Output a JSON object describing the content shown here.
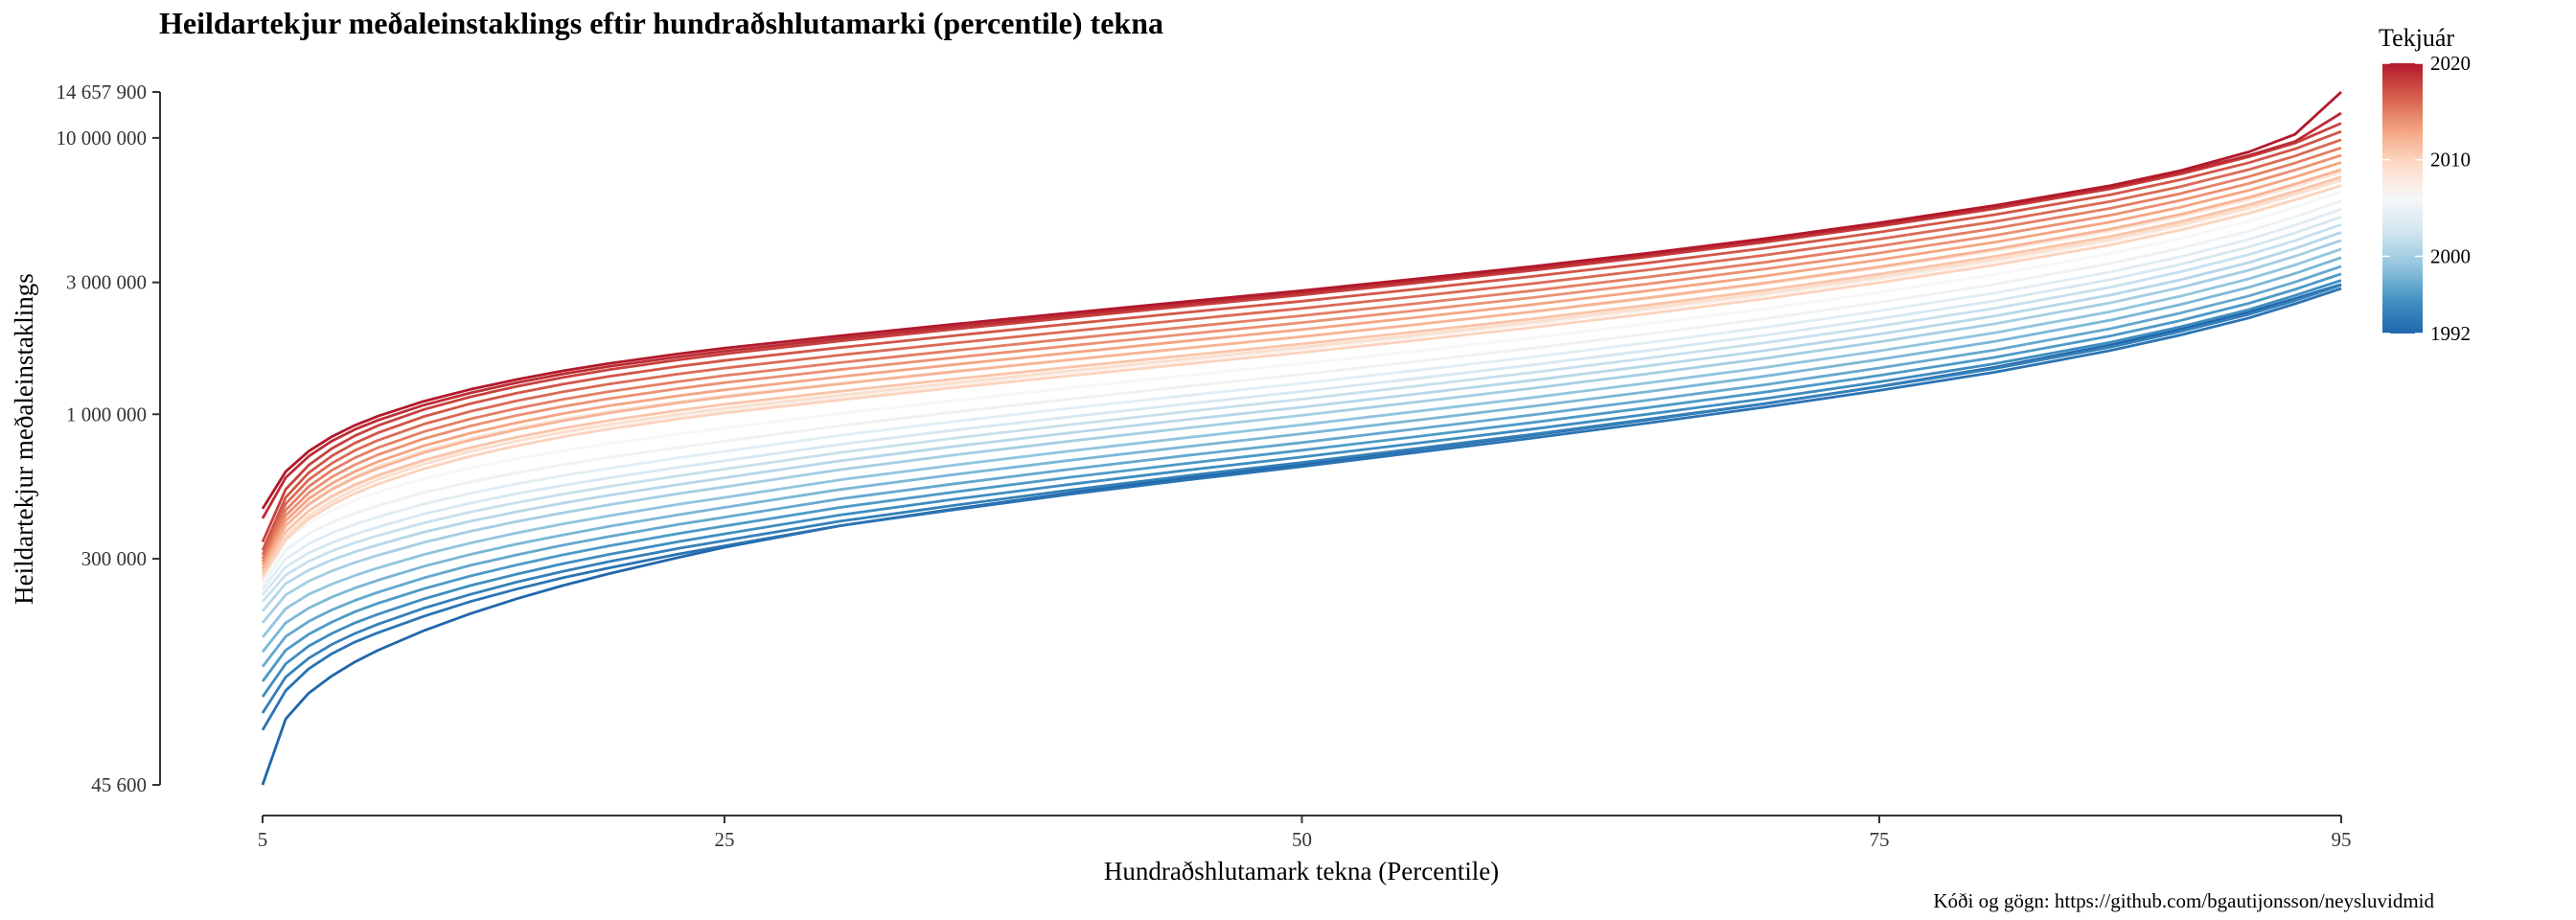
{
  "page": {
    "title": "Heildartekjur meðaleinstaklings eftir hundraðshlutamarki (percentile) tekna",
    "caption": "Kóði og gögn: https://github.com/bgautijonsson/neysluvidmid"
  },
  "chart_data": {
    "type": "line",
    "title": "Heildartekjur meðaleinstaklings eftir hundraðshlutamarki (percentile) tekna",
    "xlabel": "Hundraðshlutamark tekna (Percentile)",
    "ylabel": "Heildartekjur meðaleinstaklings",
    "xlim": [
      5,
      95
    ],
    "ylim": [
      45600,
      14657900
    ],
    "yscale": "log",
    "x_ticks": [
      5,
      25,
      50,
      75,
      95
    ],
    "y_ticks": [
      {
        "value": 45600,
        "label": "45 600"
      },
      {
        "value": 300000,
        "label": "300 000"
      },
      {
        "value": 1000000,
        "label": "1 000 000"
      },
      {
        "value": 3000000,
        "label": "3 000 000"
      },
      {
        "value": 10000000,
        "label": "10 000 000"
      },
      {
        "value": 14657900,
        "label": "14 657 900"
      }
    ],
    "grid": false,
    "color_scale": "RdBu diverging (blue = 1992, white ≈ 2006, red = 2020)",
    "legend": {
      "title": "Tekjuár",
      "position": "top-right",
      "min": 1992,
      "max": 2020,
      "breaks": [
        1992,
        2000,
        2010,
        2020
      ],
      "colors": [
        "#2166ac",
        "#4393c3",
        "#92c5de",
        "#d1e5f0",
        "#f7f7f7",
        "#fddbc7",
        "#f4a582",
        "#d6604d",
        "#b2182b"
      ]
    },
    "x": [
      5,
      6,
      7,
      8,
      9,
      10,
      12,
      14,
      16,
      18,
      20,
      23,
      25,
      30,
      35,
      40,
      45,
      50,
      55,
      60,
      65,
      70,
      75,
      80,
      85,
      88,
      91,
      93,
      95
    ],
    "series": [
      {
        "year": 1992,
        "values": [
          45600,
          79000,
          98000,
          113000,
          127000,
          140000,
          165000,
          190000,
          215000,
          240000,
          265000,
          303000,
          330000,
          395000,
          455000,
          520000,
          588000,
          660000,
          745000,
          840000,
          955000,
          1090000,
          1260000,
          1480000,
          1780000,
          2030000,
          2340000,
          2620000,
          2950000
        ]
      },
      {
        "year": 1993,
        "values": [
          72000,
          100000,
          120000,
          136000,
          150000,
          162000,
          186000,
          210000,
          233000,
          256000,
          278000,
          312000,
          334000,
          395000,
          452000,
          514000,
          578000,
          647000,
          728000,
          820000,
          930000,
          1060000,
          1220000,
          1420000,
          1700000,
          1930000,
          2230000,
          2510000,
          2850000
        ]
      },
      {
        "year": 1994,
        "values": [
          83000,
          112000,
          131000,
          147000,
          161000,
          174000,
          199000,
          223000,
          247000,
          270000,
          293000,
          327000,
          349000,
          410000,
          469000,
          532000,
          599000,
          669000,
          752000,
          847000,
          960000,
          1092000,
          1258000,
          1464000,
          1750000,
          1990000,
          2300000,
          2580000,
          2930000
        ]
      },
      {
        "year": 1995,
        "values": [
          95000,
          125000,
          145000,
          161000,
          176000,
          189000,
          215000,
          240000,
          264000,
          288000,
          311000,
          346000,
          369000,
          432000,
          493000,
          558000,
          627000,
          700000,
          786000,
          884000,
          1001000,
          1138000,
          1310000,
          1524000,
          1820000,
          2070000,
          2390000,
          2690000,
          3050000
        ]
      },
      {
        "year": 1996,
        "values": [
          108000,
          140000,
          160000,
          177000,
          193000,
          207000,
          234000,
          260000,
          285000,
          310000,
          334000,
          370000,
          394000,
          460000,
          524000,
          592000,
          664000,
          741000,
          831000,
          934000,
          1057000,
          1201000,
          1382000,
          1607000,
          1920000,
          2180000,
          2520000,
          2830000,
          3220000
        ]
      },
      {
        "year": 1997,
        "values": [
          122000,
          157000,
          178000,
          196000,
          212000,
          227000,
          256000,
          284000,
          310000,
          336000,
          361000,
          399000,
          424000,
          494000,
          561000,
          633000,
          709000,
          790000,
          886000,
          995000,
          1125000,
          1278000,
          1470000,
          1709000,
          2040000,
          2320000,
          2680000,
          3010000,
          3430000
        ]
      },
      {
        "year": 1998,
        "values": [
          138000,
          176000,
          199000,
          218000,
          235000,
          251000,
          282000,
          311000,
          339000,
          366000,
          393000,
          433000,
          460000,
          534000,
          606000,
          682000,
          763000,
          850000,
          952000,
          1069000,
          1208000,
          1372000,
          1578000,
          1834000,
          2190000,
          2490000,
          2880000,
          3230000,
          3690000
        ]
      },
      {
        "year": 1999,
        "values": [
          156000,
          198000,
          223000,
          243000,
          261000,
          278000,
          311000,
          342000,
          372000,
          401000,
          429000,
          472000,
          500000,
          579000,
          656000,
          737000,
          823000,
          916000,
          1025000,
          1150000,
          1299000,
          1475000,
          1696000,
          1971000,
          2350000,
          2670000,
          3090000,
          3470000,
          3960000
        ]
      },
      {
        "year": 2000,
        "values": [
          176000,
          222000,
          249000,
          271000,
          291000,
          309000,
          344000,
          377000,
          409000,
          440000,
          470000,
          516000,
          546000,
          630000,
          713000,
          800000,
          892000,
          991000,
          1108000,
          1242000,
          1402000,
          1591000,
          1829000,
          2125000,
          2530000,
          2870000,
          3320000,
          3730000,
          4260000
        ]
      },
      {
        "year": 2001,
        "values": [
          194000,
          244000,
          273000,
          297000,
          318000,
          337000,
          375000,
          410000,
          444000,
          477000,
          509000,
          557000,
          589000,
          678000,
          766000,
          858000,
          956000,
          1061000,
          1185000,
          1327000,
          1497000,
          1698000,
          1951000,
          2266000,
          2700000,
          3060000,
          3540000,
          3980000,
          4550000
        ]
      },
      {
        "year": 2002,
        "values": [
          210000,
          262000,
          294000,
          320000,
          343000,
          364000,
          405000,
          443000,
          479000,
          514000,
          548000,
          599000,
          633000,
          727000,
          820000,
          918000,
          1022000,
          1134000,
          1266000,
          1417000,
          1598000,
          1812000,
          2082000,
          2418000,
          2880000,
          3270000,
          3780000,
          4250000,
          4860000
        ]
      },
      {
        "year": 2003,
        "values": [
          222000,
          280000,
          315000,
          343000,
          368000,
          391000,
          436000,
          477000,
          516000,
          553000,
          589000,
          643000,
          679000,
          778000,
          877000,
          980000,
          1090000,
          1209000,
          1349000,
          1509000,
          1701000,
          1929000,
          2216000,
          2573000,
          3070000,
          3480000,
          4030000,
          4530000,
          5180000
        ]
      },
      {
        "year": 2004,
        "values": [
          232000,
          300000,
          340000,
          372000,
          400000,
          425000,
          474000,
          518000,
          560000,
          600000,
          638000,
          696000,
          734000,
          839000,
          943000,
          1052000,
          1169000,
          1294000,
          1443000,
          1613000,
          1817000,
          2060000,
          2366000,
          2747000,
          3270000,
          3710000,
          4290000,
          4830000,
          5520000
        ]
      },
      {
        "year": 2005,
        "values": [
          240000,
          323000,
          370000,
          407000,
          438000,
          467000,
          521000,
          569000,
          614000,
          657000,
          698000,
          758000,
          799000,
          909000,
          1020000,
          1136000,
          1261000,
          1395000,
          1553000,
          1735000,
          1953000,
          2213000,
          2541000,
          2950000,
          3510000,
          3980000,
          4600000,
          5180000,
          5920000
        ]
      },
      {
        "year": 2006,
        "values": [
          245000,
          350000,
          405000,
          450000,
          488000,
          523000,
          585000,
          640000,
          690000,
          738000,
          783000,
          848000,
          890000,
          1005000,
          1122000,
          1247000,
          1381000,
          1525000,
          1695000,
          1891000,
          2127000,
          2408000,
          2763000,
          3206000,
          3810000,
          4320000,
          4990000,
          5610000,
          6400000
        ]
      },
      {
        "year": 2007,
        "values": [
          250000,
          382000,
          448000,
          503000,
          551000,
          594000,
          670000,
          737000,
          798000,
          856000,
          910000,
          986000,
          1034000,
          1154000,
          1281000,
          1417000,
          1564000,
          1722000,
          1909000,
          2124000,
          2383000,
          2693000,
          3083000,
          3570000,
          4230000,
          4790000,
          5530000,
          6210000,
          7000000
        ]
      },
      {
        "year": 2008,
        "values": [
          265000,
          395000,
          475000,
          540000,
          598000,
          649000,
          740000,
          819000,
          892000,
          960000,
          1024000,
          1111000,
          1166000,
          1296000,
          1433000,
          1579000,
          1737000,
          1908000,
          2110000,
          2343000,
          2623000,
          2958000,
          3380000,
          3905000,
          4600000,
          5200000,
          5980000,
          6680000,
          7500000
        ]
      },
      {
        "year": 2009,
        "values": [
          262000,
          360000,
          430000,
          485000,
          535000,
          580000,
          660000,
          733000,
          800000,
          862000,
          920000,
          1000000,
          1052000,
          1173000,
          1301000,
          1438000,
          1587000,
          1748000,
          1938000,
          2158000,
          2422000,
          2739000,
          3139000,
          3638000,
          4300000,
          4860000,
          5600000,
          6260000,
          7050000
        ]
      },
      {
        "year": 2010,
        "values": [
          258000,
          352000,
          418000,
          470000,
          517000,
          559000,
          635000,
          705000,
          769000,
          829000,
          885000,
          962000,
          1011000,
          1127000,
          1249000,
          1379000,
          1520000,
          1673000,
          1853000,
          2062000,
          2313000,
          2615000,
          2995000,
          3470000,
          4100000,
          4630000,
          5340000,
          5970000,
          6720000
        ]
      },
      {
        "year": 2011,
        "values": [
          268000,
          375000,
          447000,
          505000,
          556000,
          601000,
          683000,
          757000,
          826000,
          890000,
          950000,
          1033000,
          1086000,
          1211000,
          1342000,
          1482000,
          1633000,
          1797000,
          1991000,
          2215000,
          2484000,
          2808000,
          3216000,
          3726000,
          4400000,
          4970000,
          5730000,
          6410000,
          7220000
        ]
      },
      {
        "year": 2012,
        "values": [
          276000,
          395000,
          472000,
          534000,
          589000,
          638000,
          727000,
          806000,
          879000,
          947000,
          1011000,
          1099000,
          1155000,
          1288000,
          1427000,
          1575000,
          1735000,
          1909000,
          2115000,
          2353000,
          2639000,
          2983000,
          3416000,
          3958000,
          4680000,
          5280000,
          6090000,
          6810000,
          7680000
        ]
      },
      {
        "year": 2013,
        "values": [
          284000,
          412000,
          495000,
          562000,
          621000,
          674000,
          770000,
          854000,
          932000,
          1005000,
          1073000,
          1166000,
          1226000,
          1367000,
          1514000,
          1671000,
          1841000,
          2025000,
          2243000,
          2495000,
          2798000,
          3162000,
          3621000,
          4195000,
          4960000,
          5600000,
          6460000,
          7220000,
          8150000
        ]
      },
      {
        "year": 2014,
        "values": [
          292000,
          430000,
          520000,
          593000,
          657000,
          714000,
          817000,
          907000,
          990000,
          1067000,
          1139000,
          1238000,
          1301000,
          1450000,
          1605000,
          1771000,
          1951000,
          2146000,
          2376000,
          2643000,
          2963000,
          3348000,
          3834000,
          4441000,
          5250000,
          5930000,
          6840000,
          7650000,
          8650000
        ]
      },
      {
        "year": 2015,
        "values": [
          300000,
          450000,
          548000,
          627000,
          696000,
          757000,
          866000,
          962000,
          1050000,
          1132000,
          1208000,
          1313000,
          1380000,
          1538000,
          1702000,
          1878000,
          2068000,
          2274000,
          2518000,
          2800000,
          3138000,
          3545000,
          4059000,
          4701000,
          5560000,
          6280000,
          7240000,
          8110000,
          9200000
        ]
      },
      {
        "year": 2016,
        "values": [
          310000,
          474000,
          580000,
          665000,
          740000,
          805000,
          922000,
          1024000,
          1118000,
          1205000,
          1286000,
          1398000,
          1469000,
          1637000,
          1811000,
          1997000,
          2198000,
          2416000,
          2674000,
          2972000,
          3330000,
          3760000,
          4303000,
          4982000,
          5890000,
          6650000,
          7680000,
          8600000,
          9850000
        ]
      },
      {
        "year": 2017,
        "values": [
          322000,
          500000,
          615000,
          707000,
          787000,
          857000,
          982000,
          1092000,
          1192000,
          1285000,
          1371000,
          1490000,
          1565000,
          1743000,
          1927000,
          2124000,
          2336000,
          2566000,
          2839000,
          3153000,
          3531000,
          3985000,
          4558000,
          5274000,
          6230000,
          7040000,
          8130000,
          9120000,
          10550000
        ]
      },
      {
        "year": 2018,
        "values": [
          345000,
          535000,
          655000,
          752000,
          836000,
          910000,
          1041000,
          1156000,
          1261000,
          1358000,
          1449000,
          1574000,
          1653000,
          1840000,
          2033000,
          2239000,
          2462000,
          2703000,
          2989000,
          3318000,
          3714000,
          4190000,
          4790000,
          5541000,
          6540000,
          7390000,
          8540000,
          9580000,
          11300000
        ]
      },
      {
        "year": 2019,
        "values": [
          420000,
          590000,
          705000,
          800000,
          881000,
          952000,
          1080000,
          1195000,
          1300000,
          1398000,
          1489000,
          1613000,
          1692000,
          1880000,
          2074000,
          2282000,
          2506000,
          2749000,
          3037000,
          3369000,
          3768000,
          4249000,
          4855000,
          5614000,
          6620000,
          7480000,
          8640000,
          9700000,
          12300000
        ]
      },
      {
        "year": 2020,
        "values": [
          455000,
          620000,
          735000,
          830000,
          912000,
          985000,
          1115000,
          1230000,
          1336000,
          1436000,
          1528000,
          1654000,
          1734000,
          1923000,
          2119000,
          2329000,
          2556000,
          2801000,
          3092000,
          3427000,
          3830000,
          4316000,
          4928000,
          5694000,
          6720000,
          7600000,
          8900000,
          10300000,
          14657900
        ]
      }
    ]
  }
}
